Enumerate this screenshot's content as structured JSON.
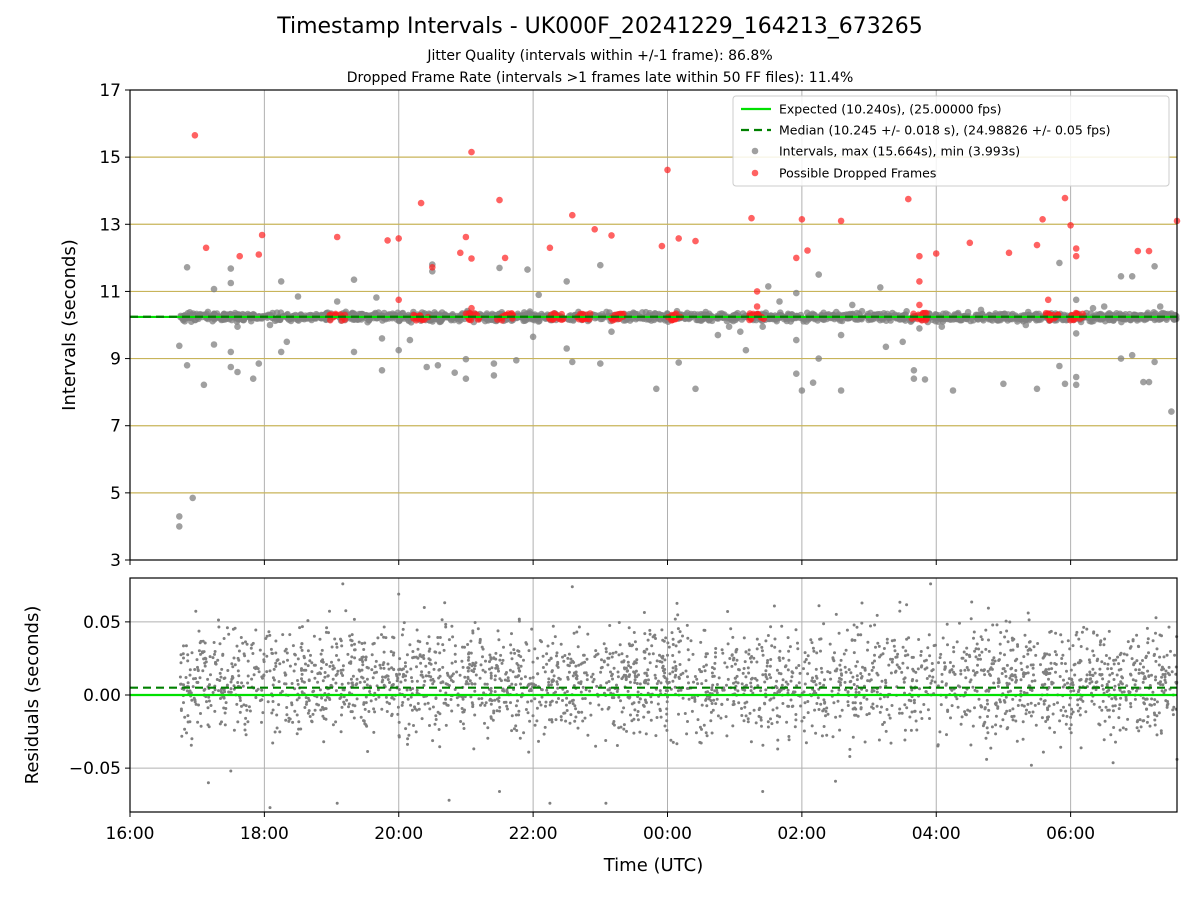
{
  "figure": {
    "title": "Timestamp Intervals - UK000F_20241229_164213_673265",
    "subtitle_1": "Jitter Quality (intervals within +/-1 frame): 86.8%",
    "subtitle_2": "Dropped Frame Rate (intervals >1 frames late within 50 FF files): 11.4%"
  },
  "colors": {
    "expected_line": "#00e000",
    "median_line": "#008000",
    "intervals": "#808080",
    "dropped": "#ff2020",
    "hline": "#c8b45a",
    "grid": "#b0b0b0"
  },
  "chart_data": [
    {
      "type": "scatter",
      "ylabel": "Intervals (seconds)",
      "xlim": [
        "16:00",
        "07:35"
      ],
      "ylim": [
        3,
        17
      ],
      "yticks": [
        "3",
        "5",
        "7",
        "9",
        "11",
        "13",
        "15",
        "17"
      ],
      "xticks": [
        "16:00",
        "18:00",
        "20:00",
        "22:00",
        "00:00",
        "02:00",
        "04:00",
        "06:00"
      ],
      "grid": "vertical at x ticks",
      "horizontal_lines": [
        5,
        7,
        9,
        11,
        13,
        15
      ],
      "legend_position": "upper right",
      "legend": [
        {
          "label": "Expected (10.240s), (25.00000 fps)",
          "kind": "line-solid"
        },
        {
          "label": "Median (10.245 +/- 0.018 s), (24.98826 +/- 0.05 fps)",
          "kind": "line-dashed"
        },
        {
          "label": "Intervals, max (15.664s), min (3.993s)",
          "kind": "dot-gray"
        },
        {
          "label": "Possible Dropped Frames",
          "kind": "dot-red"
        }
      ],
      "expected": 10.24,
      "median": 10.245,
      "series": [
        {
          "name": "Intervals, max (15.664s), min (3.993s)",
          "band": {
            "x_start": "16:45",
            "x_end": "07:35",
            "center": 10.24,
            "spread": 0.1
          },
          "outliers": [
            [
              "16:44",
              9.38
            ],
            [
              "16:44",
              4.3
            ],
            [
              "16:44",
              4.0
            ],
            [
              "16:51",
              11.72
            ],
            [
              "16:51",
              8.8
            ],
            [
              "16:56",
              4.85
            ],
            [
              "17:06",
              8.22
            ],
            [
              "17:15",
              11.07
            ],
            [
              "17:15",
              9.42
            ],
            [
              "17:30",
              11.68
            ],
            [
              "17:30",
              11.25
            ],
            [
              "17:30",
              9.2
            ],
            [
              "17:30",
              8.75
            ],
            [
              "17:36",
              8.6
            ],
            [
              "17:36",
              9.95
            ],
            [
              "17:50",
              8.4
            ],
            [
              "17:55",
              8.85
            ],
            [
              "18:05",
              10.0
            ],
            [
              "18:15",
              11.3
            ],
            [
              "18:15",
              9.2
            ],
            [
              "18:20",
              9.5
            ],
            [
              "18:30",
              10.85
            ],
            [
              "18:45",
              10.2
            ],
            [
              "19:05",
              10.7
            ],
            [
              "19:20",
              11.35
            ],
            [
              "19:20",
              9.2
            ],
            [
              "19:40",
              10.82
            ],
            [
              "19:45",
              8.65
            ],
            [
              "19:45",
              9.6
            ],
            [
              "20:00",
              9.25
            ],
            [
              "20:10",
              9.55
            ],
            [
              "20:25",
              8.75
            ],
            [
              "20:30",
              11.6
            ],
            [
              "20:30",
              11.8
            ],
            [
              "20:35",
              8.8
            ],
            [
              "20:50",
              8.58
            ],
            [
              "21:00",
              8.4
            ],
            [
              "21:00",
              8.98
            ],
            [
              "21:25",
              8.85
            ],
            [
              "21:25",
              8.5
            ],
            [
              "21:30",
              11.7
            ],
            [
              "21:45",
              8.95
            ],
            [
              "21:55",
              11.65
            ],
            [
              "22:00",
              9.65
            ],
            [
              "22:05",
              10.9
            ],
            [
              "22:30",
              11.3
            ],
            [
              "22:30",
              9.3
            ],
            [
              "22:35",
              8.9
            ],
            [
              "22:45",
              10.3
            ],
            [
              "23:00",
              11.78
            ],
            [
              "23:00",
              8.85
            ],
            [
              "23:10",
              9.8
            ],
            [
              "23:50",
              8.1
            ],
            [
              "00:10",
              8.88
            ],
            [
              "00:25",
              8.1
            ],
            [
              "00:45",
              9.7
            ],
            [
              "00:55",
              9.95
            ],
            [
              "01:05",
              9.8
            ],
            [
              "01:10",
              9.25
            ],
            [
              "01:25",
              9.95
            ],
            [
              "01:30",
              11.15
            ],
            [
              "01:40",
              10.7
            ],
            [
              "01:55",
              10.95
            ],
            [
              "01:55",
              9.55
            ],
            [
              "01:55",
              8.55
            ],
            [
              "02:00",
              8.05
            ],
            [
              "02:10",
              8.28
            ],
            [
              "02:15",
              11.5
            ],
            [
              "02:15",
              9.0
            ],
            [
              "02:35",
              9.7
            ],
            [
              "02:35",
              8.05
            ],
            [
              "02:45",
              10.6
            ],
            [
              "03:10",
              11.12
            ],
            [
              "03:15",
              9.35
            ],
            [
              "03:30",
              9.5
            ],
            [
              "03:40",
              8.65
            ],
            [
              "03:40",
              8.4
            ],
            [
              "03:45",
              9.9
            ],
            [
              "03:50",
              8.38
            ],
            [
              "04:05",
              9.95
            ],
            [
              "04:15",
              8.05
            ],
            [
              "04:40",
              10.45
            ],
            [
              "05:00",
              8.25
            ],
            [
              "05:20",
              10.0
            ],
            [
              "05:30",
              8.1
            ],
            [
              "05:50",
              11.85
            ],
            [
              "05:50",
              8.78
            ],
            [
              "05:55",
              8.25
            ],
            [
              "06:05",
              10.75
            ],
            [
              "06:05",
              9.75
            ],
            [
              "06:05",
              8.22
            ],
            [
              "06:05",
              8.45
            ],
            [
              "06:20",
              10.5
            ],
            [
              "06:30",
              10.55
            ],
            [
              "06:45",
              11.45
            ],
            [
              "06:45",
              9.0
            ],
            [
              "06:55",
              9.1
            ],
            [
              "06:55",
              11.45
            ],
            [
              "07:05",
              8.3
            ],
            [
              "07:10",
              8.3
            ],
            [
              "07:15",
              11.75
            ],
            [
              "07:15",
              8.9
            ],
            [
              "07:20",
              10.55
            ],
            [
              "07:30",
              7.42
            ]
          ]
        },
        {
          "name": "Possible Dropped Frames",
          "values": [
            [
              "16:58",
              15.65
            ],
            [
              "17:08",
              12.3
            ],
            [
              "17:38",
              12.05
            ],
            [
              "17:55",
              12.1
            ],
            [
              "17:58",
              12.68
            ],
            [
              "19:05",
              12.62
            ],
            [
              "19:50",
              12.52
            ],
            [
              "20:00",
              12.58
            ],
            [
              "20:00",
              10.75
            ],
            [
              "20:20",
              13.63
            ],
            [
              "20:30",
              11.72
            ],
            [
              "20:55",
              12.15
            ],
            [
              "21:00",
              12.62
            ],
            [
              "21:05",
              11.98
            ],
            [
              "21:05",
              15.15
            ],
            [
              "21:05",
              10.5
            ],
            [
              "21:30",
              13.72
            ],
            [
              "21:35",
              12.0
            ],
            [
              "22:15",
              12.3
            ],
            [
              "22:35",
              13.27
            ],
            [
              "22:55",
              12.85
            ],
            [
              "23:10",
              12.67
            ],
            [
              "23:55",
              12.35
            ],
            [
              "00:00",
              14.62
            ],
            [
              "00:10",
              12.58
            ],
            [
              "00:25",
              12.5
            ],
            [
              "01:15",
              13.18
            ],
            [
              "01:20",
              11.0
            ],
            [
              "01:20",
              10.55
            ],
            [
              "01:55",
              12.0
            ],
            [
              "02:00",
              13.15
            ],
            [
              "02:05",
              12.22
            ],
            [
              "02:35",
              13.1
            ],
            [
              "03:35",
              13.75
            ],
            [
              "03:45",
              12.05
            ],
            [
              "03:45",
              11.3
            ],
            [
              "03:45",
              10.6
            ],
            [
              "04:00",
              12.13
            ],
            [
              "04:30",
              12.45
            ],
            [
              "05:05",
              12.15
            ],
            [
              "05:30",
              12.38
            ],
            [
              "05:35",
              13.15
            ],
            [
              "05:40",
              10.75
            ],
            [
              "05:55",
              13.78
            ],
            [
              "06:00",
              12.97
            ],
            [
              "06:05",
              12.28
            ],
            [
              "06:05",
              12.05
            ],
            [
              "07:00",
              12.2
            ],
            [
              "07:10",
              12.2
            ],
            [
              "07:35",
              13.1
            ]
          ],
          "clusters": [
            "19:05",
            "20:20",
            "21:05",
            "21:35",
            "22:20",
            "22:45",
            "23:15",
            "00:05",
            "01:20",
            "03:45",
            "05:45",
            "06:05"
          ]
        }
      ]
    },
    {
      "type": "scatter",
      "ylabel": "Residuals (seconds)",
      "xlabel": "Time (UTC)",
      "xlim": [
        "16:00",
        "07:35"
      ],
      "ylim": [
        -0.08,
        0.08
      ],
      "yticks": [
        "−0.05",
        "0.00",
        "0.05"
      ],
      "xticks": [
        "16:00",
        "18:00",
        "20:00",
        "22:00",
        "00:00",
        "02:00",
        "04:00",
        "06:00"
      ],
      "grid": "both",
      "expected_residual": 0.0,
      "median_residual": 0.005,
      "series": [
        {
          "name": "Residuals",
          "band": {
            "x_start": "16:45",
            "x_end": "07:35",
            "center": 0.01,
            "spread": 0.03
          },
          "outliers": [
            [
              "19:10",
              0.076
            ],
            [
              "22:35",
              0.074
            ],
            [
              "17:10",
              -0.06
            ],
            [
              "17:30",
              -0.052
            ],
            [
              "18:05",
              -0.077
            ],
            [
              "19:05",
              -0.074
            ],
            [
              "20:00",
              0.069
            ],
            [
              "20:45",
              -0.072
            ],
            [
              "21:30",
              -0.066
            ],
            [
              "22:15",
              -0.074
            ],
            [
              "23:05",
              -0.074
            ],
            [
              "01:25",
              -0.066
            ],
            [
              "02:30",
              -0.059
            ],
            [
              "03:55",
              0.076
            ],
            [
              "04:45",
              -0.044
            ],
            [
              "05:25",
              -0.048
            ],
            [
              "07:35",
              -0.044
            ]
          ]
        }
      ]
    }
  ]
}
